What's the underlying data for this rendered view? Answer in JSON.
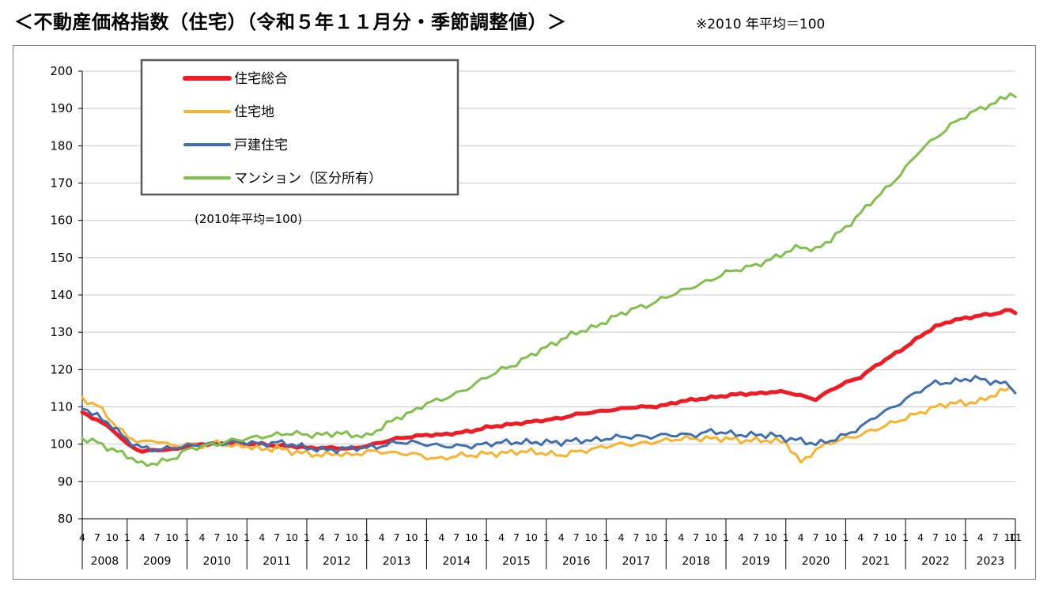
{
  "header": {
    "title": "＜不動産価格指数（住宅）（令和５年１１月分・季節調整値）＞",
    "note": "※2010 年平均＝100"
  },
  "chart_data": {
    "type": "line",
    "base_note": "(2010年平均=100)",
    "ylim": [
      80,
      200
    ],
    "yticks": [
      80,
      90,
      100,
      110,
      120,
      130,
      140,
      150,
      160,
      170,
      180,
      190,
      200
    ],
    "grid": true,
    "legend_position": "top-left",
    "x_start": "2008-04",
    "x_end": "2023-11",
    "month_tick_labels": [
      "4",
      "7",
      "10",
      "1"
    ],
    "last_year_month_tick_labels": [
      "1",
      "4",
      "7",
      "10",
      "11"
    ],
    "years": [
      "2008",
      "2009",
      "2010",
      "2011",
      "2012",
      "2013",
      "2014",
      "2015",
      "2016",
      "2017",
      "2018",
      "2019",
      "2020",
      "2021",
      "2022",
      "2023"
    ],
    "series": [
      {
        "name": "住宅総合",
        "color": "#ee1c25",
        "width": 5,
        "points": [
          [
            "2008-04",
            108.5
          ],
          [
            "2008-07",
            106.5
          ],
          [
            "2008-10",
            104.0
          ],
          [
            "2009-01",
            100.0
          ],
          [
            "2009-04",
            98.0
          ],
          [
            "2009-07",
            98.5
          ],
          [
            "2009-10",
            98.5
          ],
          [
            "2010-01",
            99.5
          ],
          [
            "2010-04",
            100.0
          ],
          [
            "2010-07",
            100.0
          ],
          [
            "2010-10",
            100.3
          ],
          [
            "2011-01",
            100.0
          ],
          [
            "2011-04",
            100.0
          ],
          [
            "2011-07",
            99.5
          ],
          [
            "2011-10",
            99.5
          ],
          [
            "2012-01",
            99.0
          ],
          [
            "2012-04",
            99.0
          ],
          [
            "2012-07",
            99.0
          ],
          [
            "2012-10",
            98.8
          ],
          [
            "2013-01",
            99.5
          ],
          [
            "2013-04",
            100.5
          ],
          [
            "2013-07",
            101.5
          ],
          [
            "2013-10",
            102.0
          ],
          [
            "2014-01",
            102.5
          ],
          [
            "2014-04",
            102.5
          ],
          [
            "2014-07",
            103.0
          ],
          [
            "2014-10",
            103.5
          ],
          [
            "2015-01",
            104.5
          ],
          [
            "2015-04",
            105.0
          ],
          [
            "2015-07",
            105.5
          ],
          [
            "2015-10",
            106.0
          ],
          [
            "2016-01",
            106.5
          ],
          [
            "2016-04",
            107.0
          ],
          [
            "2016-07",
            108.0
          ],
          [
            "2016-10",
            108.5
          ],
          [
            "2017-01",
            109.0
          ],
          [
            "2017-04",
            109.5
          ],
          [
            "2017-07",
            110.0
          ],
          [
            "2017-10",
            110.0
          ],
          [
            "2018-01",
            110.5
          ],
          [
            "2018-04",
            111.5
          ],
          [
            "2018-07",
            112.0
          ],
          [
            "2018-10",
            112.5
          ],
          [
            "2019-01",
            113.0
          ],
          [
            "2019-04",
            113.5
          ],
          [
            "2019-07",
            113.5
          ],
          [
            "2019-10",
            114.0
          ],
          [
            "2020-01",
            114.0
          ],
          [
            "2020-04",
            113.0
          ],
          [
            "2020-07",
            112.0
          ],
          [
            "2020-10",
            114.5
          ],
          [
            "2021-01",
            116.5
          ],
          [
            "2021-04",
            118.0
          ],
          [
            "2021-07",
            121.0
          ],
          [
            "2021-10",
            123.5
          ],
          [
            "2022-01",
            126.0
          ],
          [
            "2022-04",
            129.0
          ],
          [
            "2022-07",
            131.5
          ],
          [
            "2022-10",
            133.0
          ],
          [
            "2023-01",
            133.8
          ],
          [
            "2023-04",
            134.5
          ],
          [
            "2023-07",
            135.0
          ],
          [
            "2023-10",
            136.0
          ],
          [
            "2023-11",
            135.2
          ]
        ]
      },
      {
        "name": "住宅地",
        "color": "#fcb12b",
        "width": 3,
        "points": [
          [
            "2008-04",
            112.0
          ],
          [
            "2008-07",
            110.5
          ],
          [
            "2008-10",
            106.0
          ],
          [
            "2009-01",
            102.0
          ],
          [
            "2009-04",
            100.5
          ],
          [
            "2009-07",
            101.0
          ],
          [
            "2009-10",
            99.5
          ],
          [
            "2010-01",
            100.0
          ],
          [
            "2010-04",
            99.5
          ],
          [
            "2010-07",
            100.5
          ],
          [
            "2010-10",
            99.5
          ],
          [
            "2011-01",
            99.5
          ],
          [
            "2011-04",
            98.5
          ],
          [
            "2011-07",
            99.0
          ],
          [
            "2011-10",
            98.0
          ],
          [
            "2012-01",
            97.5
          ],
          [
            "2012-04",
            97.0
          ],
          [
            "2012-07",
            97.5
          ],
          [
            "2012-10",
            97.0
          ],
          [
            "2013-01",
            98.0
          ],
          [
            "2013-04",
            98.0
          ],
          [
            "2013-07",
            97.5
          ],
          [
            "2013-10",
            97.5
          ],
          [
            "2014-01",
            96.5
          ],
          [
            "2014-04",
            96.0
          ],
          [
            "2014-07",
            97.0
          ],
          [
            "2014-10",
            97.0
          ],
          [
            "2015-01",
            97.5
          ],
          [
            "2015-04",
            97.5
          ],
          [
            "2015-07",
            98.0
          ],
          [
            "2015-10",
            98.0
          ],
          [
            "2016-01",
            97.5
          ],
          [
            "2016-04",
            97.0
          ],
          [
            "2016-07",
            98.0
          ],
          [
            "2016-10",
            98.5
          ],
          [
            "2017-01",
            99.5
          ],
          [
            "2017-04",
            100.0
          ],
          [
            "2017-07",
            100.0
          ],
          [
            "2017-10",
            100.5
          ],
          [
            "2018-01",
            101.0
          ],
          [
            "2018-04",
            101.5
          ],
          [
            "2018-07",
            101.5
          ],
          [
            "2018-10",
            101.5
          ],
          [
            "2019-01",
            101.5
          ],
          [
            "2019-04",
            101.0
          ],
          [
            "2019-07",
            101.0
          ],
          [
            "2019-10",
            101.0
          ],
          [
            "2020-01",
            100.5
          ],
          [
            "2020-04",
            95.0
          ],
          [
            "2020-07",
            98.5
          ],
          [
            "2020-10",
            100.5
          ],
          [
            "2021-01",
            101.5
          ],
          [
            "2021-04",
            102.5
          ],
          [
            "2021-07",
            104.0
          ],
          [
            "2021-10",
            105.5
          ],
          [
            "2022-01",
            107.0
          ],
          [
            "2022-04",
            108.5
          ],
          [
            "2022-07",
            110.0
          ],
          [
            "2022-10",
            111.0
          ],
          [
            "2023-01",
            111.0
          ],
          [
            "2023-04",
            111.5
          ],
          [
            "2023-07",
            113.5
          ],
          [
            "2023-10",
            115.0
          ],
          [
            "2023-11",
            114.5
          ]
        ]
      },
      {
        "name": "戸建住宅",
        "color": "#3e6fb0",
        "width": 3,
        "points": [
          [
            "2008-04",
            110.0
          ],
          [
            "2008-07",
            107.5
          ],
          [
            "2008-10",
            105.0
          ],
          [
            "2009-01",
            101.0
          ],
          [
            "2009-04",
            99.0
          ],
          [
            "2009-07",
            98.5
          ],
          [
            "2009-10",
            99.0
          ],
          [
            "2010-01",
            99.5
          ],
          [
            "2010-04",
            100.0
          ],
          [
            "2010-07",
            100.0
          ],
          [
            "2010-10",
            100.5
          ],
          [
            "2011-01",
            100.5
          ],
          [
            "2011-04",
            100.0
          ],
          [
            "2011-07",
            100.5
          ],
          [
            "2011-10",
            100.0
          ],
          [
            "2012-01",
            99.0
          ],
          [
            "2012-04",
            98.5
          ],
          [
            "2012-07",
            98.5
          ],
          [
            "2012-10",
            99.0
          ],
          [
            "2013-01",
            99.0
          ],
          [
            "2013-04",
            99.5
          ],
          [
            "2013-07",
            100.5
          ],
          [
            "2013-10",
            100.5
          ],
          [
            "2014-01",
            100.0
          ],
          [
            "2014-04",
            99.5
          ],
          [
            "2014-07",
            99.5
          ],
          [
            "2014-10",
            99.5
          ],
          [
            "2015-01",
            100.0
          ],
          [
            "2015-04",
            100.5
          ],
          [
            "2015-07",
            100.5
          ],
          [
            "2015-10",
            100.5
          ],
          [
            "2016-01",
            100.5
          ],
          [
            "2016-04",
            100.5
          ],
          [
            "2016-07",
            101.0
          ],
          [
            "2016-10",
            101.0
          ],
          [
            "2017-01",
            101.5
          ],
          [
            "2017-04",
            102.0
          ],
          [
            "2017-07",
            102.0
          ],
          [
            "2017-10",
            102.0
          ],
          [
            "2018-01",
            102.5
          ],
          [
            "2018-04",
            102.5
          ],
          [
            "2018-07",
            102.5
          ],
          [
            "2018-10",
            103.5
          ],
          [
            "2019-01",
            103.0
          ],
          [
            "2019-04",
            102.5
          ],
          [
            "2019-07",
            102.5
          ],
          [
            "2019-10",
            102.5
          ],
          [
            "2020-01",
            101.5
          ],
          [
            "2020-04",
            101.0
          ],
          [
            "2020-07",
            100.0
          ],
          [
            "2020-10",
            101.0
          ],
          [
            "2021-01",
            102.5
          ],
          [
            "2021-04",
            104.5
          ],
          [
            "2021-07",
            107.5
          ],
          [
            "2021-10",
            109.5
          ],
          [
            "2022-01",
            112.0
          ],
          [
            "2022-04",
            114.5
          ],
          [
            "2022-07",
            116.5
          ],
          [
            "2022-10",
            116.5
          ],
          [
            "2023-01",
            117.5
          ],
          [
            "2023-04",
            117.5
          ],
          [
            "2023-07",
            116.5
          ],
          [
            "2023-10",
            116.0
          ],
          [
            "2023-11",
            113.5
          ]
        ]
      },
      {
        "name": "マンション（区分所有）",
        "color": "#7fc04a",
        "width": 3,
        "points": [
          [
            "2008-04",
            101.5
          ],
          [
            "2008-07",
            100.5
          ],
          [
            "2008-10",
            98.5
          ],
          [
            "2009-01",
            97.0
          ],
          [
            "2009-04",
            94.5
          ],
          [
            "2009-07",
            95.0
          ],
          [
            "2009-10",
            96.0
          ],
          [
            "2010-01",
            98.5
          ],
          [
            "2010-04",
            99.5
          ],
          [
            "2010-07",
            100.0
          ],
          [
            "2010-10",
            101.0
          ],
          [
            "2011-01",
            101.5
          ],
          [
            "2011-04",
            102.0
          ],
          [
            "2011-07",
            102.5
          ],
          [
            "2011-10",
            103.0
          ],
          [
            "2012-01",
            102.5
          ],
          [
            "2012-04",
            102.5
          ],
          [
            "2012-07",
            103.0
          ],
          [
            "2012-10",
            102.5
          ],
          [
            "2013-01",
            102.0
          ],
          [
            "2013-04",
            104.5
          ],
          [
            "2013-07",
            107.0
          ],
          [
            "2013-10",
            108.5
          ],
          [
            "2014-01",
            111.0
          ],
          [
            "2014-04",
            112.0
          ],
          [
            "2014-07",
            113.5
          ],
          [
            "2014-10",
            115.5
          ],
          [
            "2015-01",
            118.0
          ],
          [
            "2015-04",
            120.0
          ],
          [
            "2015-07",
            121.5
          ],
          [
            "2015-10",
            124.0
          ],
          [
            "2016-01",
            126.0
          ],
          [
            "2016-04",
            128.0
          ],
          [
            "2016-07",
            130.0
          ],
          [
            "2016-10",
            131.0
          ],
          [
            "2017-01",
            133.0
          ],
          [
            "2017-04",
            135.0
          ],
          [
            "2017-07",
            136.5
          ],
          [
            "2017-10",
            137.5
          ],
          [
            "2018-01",
            139.5
          ],
          [
            "2018-04",
            141.0
          ],
          [
            "2018-07",
            142.5
          ],
          [
            "2018-10",
            144.0
          ],
          [
            "2019-01",
            146.0
          ],
          [
            "2019-04",
            147.0
          ],
          [
            "2019-07",
            148.0
          ],
          [
            "2019-10",
            149.5
          ],
          [
            "2020-01",
            151.5
          ],
          [
            "2020-04",
            153.0
          ],
          [
            "2020-07",
            152.0
          ],
          [
            "2020-10",
            155.0
          ],
          [
            "2021-01",
            158.0
          ],
          [
            "2021-04",
            162.0
          ],
          [
            "2021-07",
            166.0
          ],
          [
            "2021-10",
            169.5
          ],
          [
            "2022-01",
            174.0
          ],
          [
            "2022-04",
            179.0
          ],
          [
            "2022-07",
            182.0
          ],
          [
            "2022-10",
            185.5
          ],
          [
            "2023-01",
            188.0
          ],
          [
            "2023-04",
            190.0
          ],
          [
            "2023-07",
            191.5
          ],
          [
            "2023-10",
            194.0
          ],
          [
            "2023-11",
            193.5
          ]
        ]
      }
    ]
  }
}
